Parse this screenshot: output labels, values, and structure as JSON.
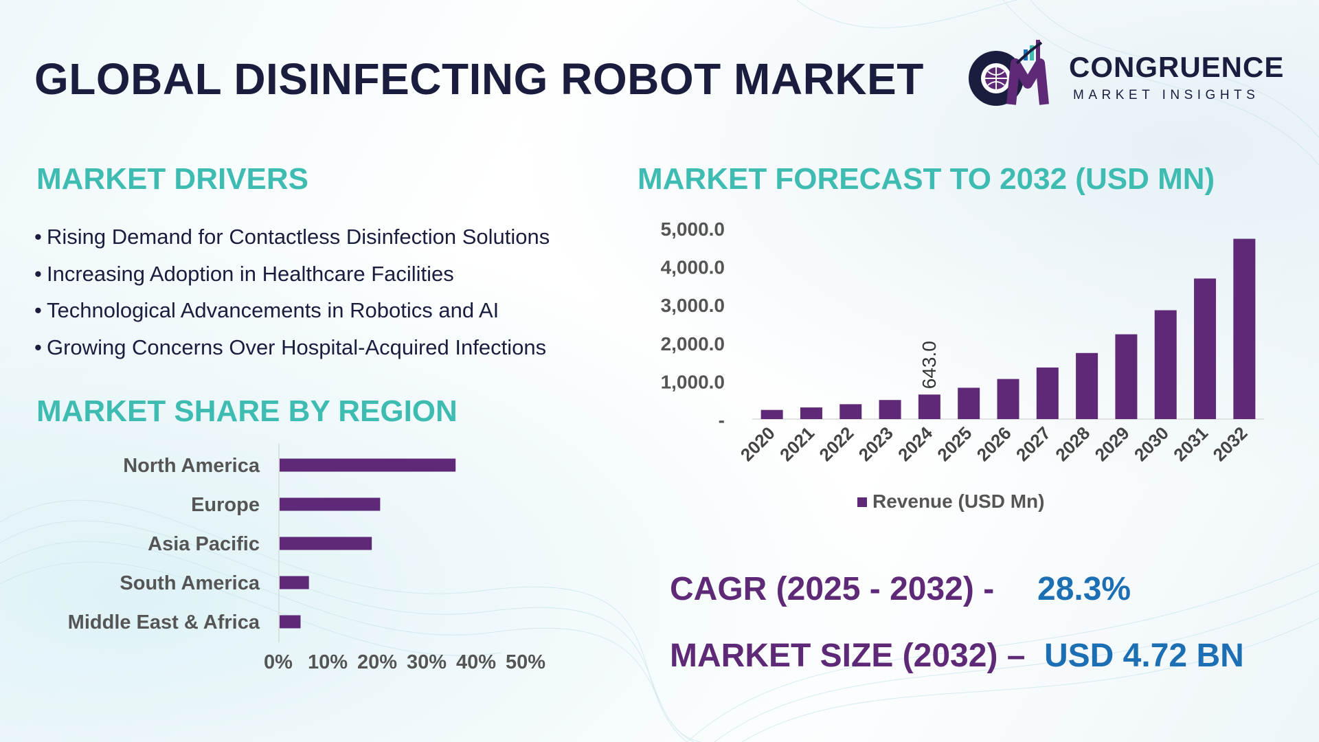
{
  "title": "GLOBAL DISINFECTING ROBOT MARKET",
  "logo": {
    "name": "CONGRUENCE",
    "subtitle": "MARKET INSIGHTS",
    "mark_text": "CM"
  },
  "colors": {
    "title": "#1a1d3d",
    "section_heading": "#3fbcb2",
    "bar": "#5e2a78",
    "kpi_label": "#5e2a78",
    "kpi_value": "#1d6fb3"
  },
  "drivers": {
    "heading": "MARKET DRIVERS",
    "items": [
      "Rising Demand for Contactless Disinfection Solutions",
      "Increasing Adoption in Healthcare Facilities",
      "Technological Advancements in Robotics and AI",
      "Growing Concerns Over Hospital-Acquired Infections"
    ]
  },
  "region": {
    "heading": "MARKET SHARE BY REGION"
  },
  "forecast": {
    "heading": "MARKET FORECAST TO 2032 (USD MN)"
  },
  "kpis": {
    "cagr_label": "CAGR (2025 - 2032) -",
    "cagr_value": "28.3%",
    "size_label": "MARKET SIZE (2032) –",
    "size_value": "USD 4.72 BN"
  },
  "chart_data": [
    {
      "type": "bar",
      "orientation": "vertical",
      "categories": [
        "2020",
        "2021",
        "2022",
        "2023",
        "2024",
        "2025",
        "2026",
        "2027",
        "2028",
        "2029",
        "2030",
        "2031",
        "2032"
      ],
      "series": [
        {
          "name": "Revenue (USD Mn)",
          "values": [
            240,
            305,
            390,
            500,
            643,
            820,
            1050,
            1350,
            1730,
            2220,
            2850,
            3680,
            4720
          ]
        }
      ],
      "data_labels": [
        {
          "category": "2024",
          "text": "643.0"
        }
      ],
      "ylim": [
        0,
        5000
      ],
      "yticks": [
        "-",
        "1,000.0",
        "2,000.0",
        "3,000.0",
        "4,000.0",
        "5,000.0"
      ],
      "legend": "bottom",
      "grid": false
    },
    {
      "type": "bar",
      "orientation": "horizontal",
      "categories": [
        "North America",
        "Europe",
        "Asia Pacific",
        "South America",
        "Middle East & Africa"
      ],
      "values": [
        42,
        24,
        22,
        7,
        5
      ],
      "unit": "%",
      "xlim": [
        0,
        50
      ],
      "xticks": [
        "0%",
        "10%",
        "20%",
        "30%",
        "40%",
        "50%"
      ],
      "grid": false
    }
  ]
}
